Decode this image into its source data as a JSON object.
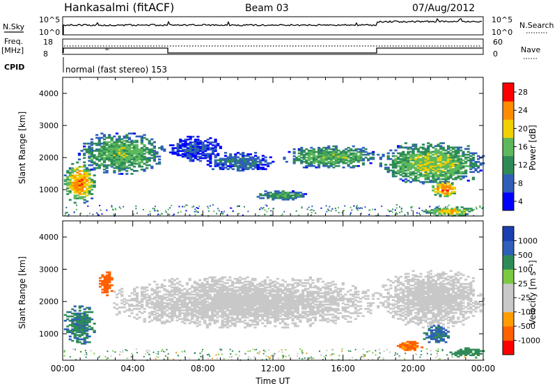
{
  "header": {
    "station": "Hankasalmi (fitACF)",
    "beam": "Beam 03",
    "date": "07/Aug/2012"
  },
  "top_panels": {
    "nsky_label": "N.Sky",
    "nsky_tick_high": "10^5",
    "nsky_tick_low": "10^0",
    "nsearch_label": "N.Search",
    "nsearch_tick_high": "10^5",
    "nsearch_tick_low": "10^0",
    "freq_label": "Freq.",
    "freq_unit": "[MHz]",
    "freq_tick_high": "18",
    "freq_tick_low": "8",
    "nave_label": "Nave",
    "nave_tick_high": "60",
    "nave_tick_low": "0",
    "cpid_label": "CPID",
    "cpid_text": "normal (fast stereo) 153"
  },
  "chart_data": [
    {
      "type": "heatmap",
      "name": "power",
      "ylabel": "Slant Range [km]",
      "ylim": [
        180,
        4500
      ],
      "yticks": [
        "4000",
        "3000",
        "2000",
        "1000"
      ],
      "colorbar_label": "Power [dB]",
      "colorbar_ticks": [
        "28",
        "24",
        "20",
        "16",
        "12",
        "8",
        "4"
      ],
      "colorbar_colors": [
        "#0000ff",
        "#2f5fb8",
        "#2e8b57",
        "#5db85d",
        "#f0d000",
        "#ff8c00",
        "#ff0000"
      ],
      "regions": [
        {
          "t0": 0.0,
          "t1": 1.8,
          "r0": 600,
          "r1": 1900,
          "level": 24
        },
        {
          "t0": 0.8,
          "t1": 5.8,
          "r0": 1500,
          "r1": 2800,
          "level": 16
        },
        {
          "t0": 6.0,
          "t1": 9.0,
          "r0": 1900,
          "r1": 2700,
          "level": 8
        },
        {
          "t0": 8.0,
          "t1": 12.0,
          "r0": 1600,
          "r1": 2200,
          "level": 10
        },
        {
          "t0": 12.5,
          "t1": 18.0,
          "r0": 1700,
          "r1": 2400,
          "level": 16
        },
        {
          "t0": 11.0,
          "t1": 14.0,
          "r0": 700,
          "r1": 1000,
          "level": 14
        },
        {
          "t0": 18.0,
          "t1": 24.0,
          "r0": 1200,
          "r1": 2500,
          "level": 18
        },
        {
          "t0": 21.0,
          "t1": 22.5,
          "r0": 800,
          "r1": 1300,
          "level": 26
        },
        {
          "t0": 20.5,
          "t1": 23.5,
          "r0": 200,
          "r1": 500,
          "level": 22
        }
      ]
    },
    {
      "type": "heatmap",
      "name": "velocity",
      "ylabel": "Slant Range [km]",
      "xlabel": "Time UT",
      "ylim": [
        180,
        4500
      ],
      "yticks": [
        "4000",
        "3000",
        "2000",
        "1000"
      ],
      "xticks": [
        "00:00",
        "04:00",
        "08:00",
        "12:00",
        "16:00",
        "20:00",
        "00:00"
      ],
      "xlim": [
        0,
        24
      ],
      "colorbar_label": "Velocity [m s⁻¹]",
      "colorbar_ticks": [
        "1000",
        "500",
        "100",
        "25",
        "-25",
        "-100",
        "-500",
        "-1000"
      ],
      "colorbar_colors": [
        "#ff0000",
        "#ff6000",
        "#ff9c00",
        "#c8c8c8",
        "#c8c8c8",
        "#7ac943",
        "#2e8b57",
        "#2f5fb8",
        "#1a3fb0"
      ],
      "regions": [
        {
          "t0": 0.0,
          "t1": 1.8,
          "r0": 700,
          "r1": 1900,
          "level": 250
        },
        {
          "t0": 2.0,
          "t1": 2.8,
          "r0": 2200,
          "r1": 3000,
          "level": -300
        },
        {
          "t0": 2.8,
          "t1": 18.0,
          "r0": 1200,
          "r1": 2800,
          "level": 0
        },
        {
          "t0": 18.0,
          "t1": 24.0,
          "r0": 1200,
          "r1": 3000,
          "level": 0
        },
        {
          "t0": 19.0,
          "t1": 20.5,
          "r0": 500,
          "r1": 800,
          "level": -150
        },
        {
          "t0": 20.5,
          "t1": 22.0,
          "r0": 700,
          "r1": 1300,
          "level": 400
        },
        {
          "t0": 22.0,
          "t1": 24.0,
          "r0": 300,
          "r1": 600,
          "level": 200
        }
      ]
    }
  ]
}
